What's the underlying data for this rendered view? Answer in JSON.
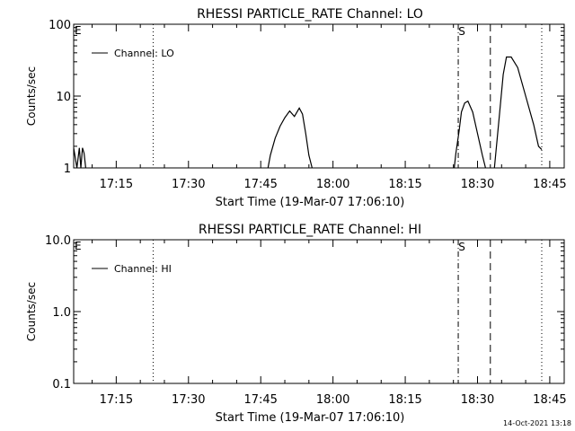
{
  "footer": {
    "date": "14-Oct-2021 13:18"
  },
  "chart_data": [
    {
      "type": "line",
      "title": "RHESSI PARTICLE_RATE Channel: LO",
      "xlabel": "Start Time (19-Mar-07 17:06:10)",
      "ylabel": "Counts/sec",
      "yscale": "log",
      "xlim": [
        "17:06:10",
        "18:48:00"
      ],
      "ylim": [
        1,
        100
      ],
      "x_ticks": [
        "17:15",
        "17:30",
        "17:45",
        "18:00",
        "18:15",
        "18:30",
        "18:45"
      ],
      "y_ticks": [
        "1",
        "10",
        "100"
      ],
      "corner_flag": "E",
      "marker_label": "S",
      "legend": {
        "position": "top-left",
        "entries": [
          "Channel: LO"
        ]
      },
      "markers": [
        {
          "time": "17:22:40",
          "style": "dotted"
        },
        {
          "time": "18:26:00",
          "style": "dash-dot"
        },
        {
          "time": "18:32:40",
          "style": "dashed"
        },
        {
          "time": "18:43:20",
          "style": "dotted"
        }
      ],
      "series": [
        {
          "name": "Channel: LO",
          "segments": [
            [
              [
                "17:06:10",
                1.9
              ],
              [
                "17:06:50",
                1.0
              ],
              [
                "17:07:20",
                1.9
              ],
              [
                "17:07:40",
                1.0
              ],
              [
                "17:08:00",
                1.9
              ],
              [
                "17:08:20",
                1.6
              ],
              [
                "17:08:40",
                1.0
              ]
            ],
            [
              [
                "17:46:30",
                1.0
              ],
              [
                "17:47:00",
                1.5
              ],
              [
                "17:48:00",
                2.6
              ],
              [
                "17:49:00",
                3.8
              ],
              [
                "17:50:00",
                5.0
              ],
              [
                "17:51:00",
                6.2
              ],
              [
                "17:52:00",
                5.2
              ],
              [
                "17:53:00",
                6.8
              ],
              [
                "17:53:40",
                5.6
              ],
              [
                "17:54:20",
                3.0
              ],
              [
                "17:55:00",
                1.5
              ],
              [
                "17:55:40",
                1.0
              ]
            ],
            [
              [
                "18:25:10",
                1.0
              ],
              [
                "18:25:30",
                1.6
              ],
              [
                "18:26:10",
                3.2
              ],
              [
                "18:26:40",
                6.0
              ],
              [
                "18:27:20",
                8.0
              ],
              [
                "18:28:00",
                8.5
              ],
              [
                "18:29:00",
                6.0
              ],
              [
                "18:30:00",
                3.0
              ],
              [
                "18:31:00",
                1.5
              ],
              [
                "18:31:40",
                1.0
              ]
            ],
            [
              [
                "18:33:30",
                1.0
              ],
              [
                "18:34:30",
                5.0
              ],
              [
                "18:35:20",
                20.0
              ],
              [
                "18:36:00",
                35.0
              ],
              [
                "18:37:00",
                35.0
              ],
              [
                "18:38:20",
                25.0
              ],
              [
                "18:40:00",
                10.0
              ],
              [
                "18:41:40",
                4.0
              ],
              [
                "18:42:40",
                2.0
              ],
              [
                "18:43:20",
                1.8
              ]
            ]
          ]
        }
      ]
    },
    {
      "type": "line",
      "title": "RHESSI PARTICLE_RATE Channel: HI",
      "xlabel": "Start Time (19-Mar-07 17:06:10)",
      "ylabel": "Counts/sec",
      "yscale": "log",
      "xlim": [
        "17:06:10",
        "18:48:00"
      ],
      "ylim": [
        0.1,
        10
      ],
      "x_ticks": [
        "17:15",
        "17:30",
        "17:45",
        "18:00",
        "18:15",
        "18:30",
        "18:45"
      ],
      "y_ticks": [
        "0.1",
        "1.0",
        "10.0"
      ],
      "corner_flag": "E",
      "marker_label": "S",
      "legend": {
        "position": "top-left",
        "entries": [
          "Channel: HI"
        ]
      },
      "markers": [
        {
          "time": "17:22:40",
          "style": "dotted"
        },
        {
          "time": "18:26:00",
          "style": "dash-dot"
        },
        {
          "time": "18:32:40",
          "style": "dashed"
        },
        {
          "time": "18:43:20",
          "style": "dotted"
        }
      ],
      "series": [
        {
          "name": "Channel: HI",
          "segments": []
        }
      ]
    }
  ]
}
